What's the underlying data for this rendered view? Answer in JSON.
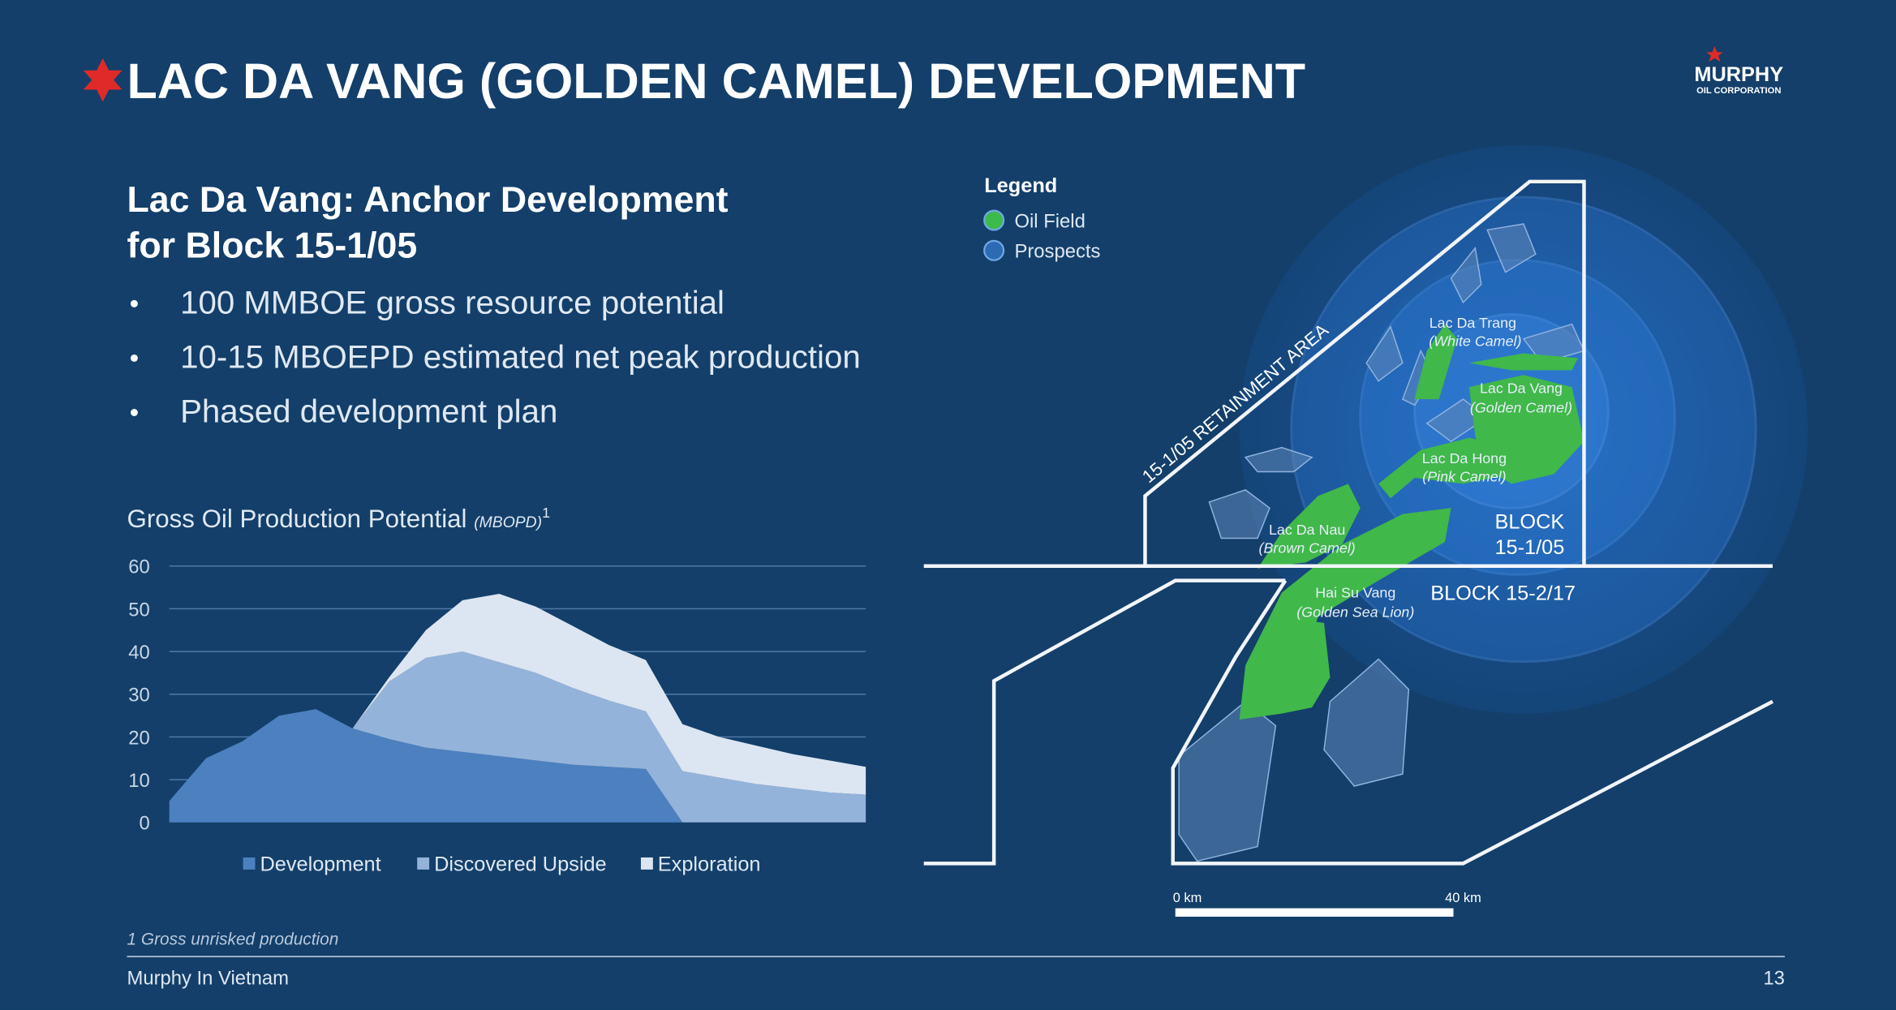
{
  "header": {
    "title": "LAC DA VANG (GOLDEN CAMEL) DEVELOPMENT",
    "logo": "MURPHY",
    "logo_sub": "OIL CORPORATION"
  },
  "subtitle": [
    "Lac Da Vang: Anchor Development",
    "for Block 15-1/05"
  ],
  "bullets": [
    "100 MMBOE gross resource potential",
    "10-15 MBOEPD estimated net peak production",
    "Phased development plan"
  ],
  "chart_data": {
    "type": "area",
    "stacked": true,
    "title": "Gross Oil Production Potential",
    "title_unit": "(MBOPD)",
    "title_note": "1",
    "categories": [
      null,
      null,
      null,
      null,
      null,
      null,
      null,
      null,
      null,
      null,
      null,
      null,
      null,
      null,
      null,
      null,
      null,
      null,
      null,
      null
    ],
    "series": [
      {
        "name": "Development",
        "color": "#4c80bf",
        "values": [
          5,
          15,
          19,
          25,
          26.5,
          22,
          19.5,
          17.5,
          16.5,
          15.5,
          14.5,
          13.5,
          13,
          12.5,
          0,
          0,
          0,
          0,
          0,
          0
        ]
      },
      {
        "name": "Discovered Upside",
        "color": "#94b3da",
        "values": [
          0,
          0,
          0,
          0,
          0,
          0,
          13.5,
          21,
          23.5,
          22,
          20.5,
          18,
          15.5,
          13.5,
          12,
          10.5,
          9,
          8,
          7,
          6.5
        ]
      },
      {
        "name": "Exploration",
        "color": "#dce6f2",
        "values": [
          0,
          0,
          0,
          0,
          0,
          0,
          1,
          6.5,
          12,
          16,
          15.5,
          14.5,
          13,
          12,
          11,
          9.5,
          9,
          8,
          7.5,
          6.5
        ]
      }
    ],
    "ylim": [
      0,
      60
    ],
    "yticks": [
      0,
      10,
      20,
      30,
      40,
      50,
      60
    ],
    "grid": true,
    "legend": "bottom"
  },
  "map": {
    "legend_title": "Legend",
    "legend": [
      {
        "label": "Oil Field",
        "color": "#3dbb4a"
      },
      {
        "label": "Prospects",
        "color": "#2c6bb3"
      }
    ],
    "fields": [
      {
        "name": "Lac Da Trang",
        "alias": "(White Camel)"
      },
      {
        "name": "Lac Da Vang",
        "alias": "(Golden Camel)"
      },
      {
        "name": "Lac Da Hong",
        "alias": "(Pink Camel)"
      },
      {
        "name": "Lac Da Nau",
        "alias": "(Brown Camel)"
      },
      {
        "name": "Hai Su Vang",
        "alias": "(Golden Sea Lion)"
      }
    ],
    "area_label": "15-1/05 RETAINMENT AREA",
    "block_a": [
      "BLOCK",
      "15-1/05"
    ],
    "block_b": "BLOCK 15-2/17",
    "scale": [
      "0 km",
      "40 km"
    ]
  },
  "footnote": "1 Gross unrisked production",
  "footer": {
    "left": "Murphy In Vietnam",
    "page": "13"
  }
}
